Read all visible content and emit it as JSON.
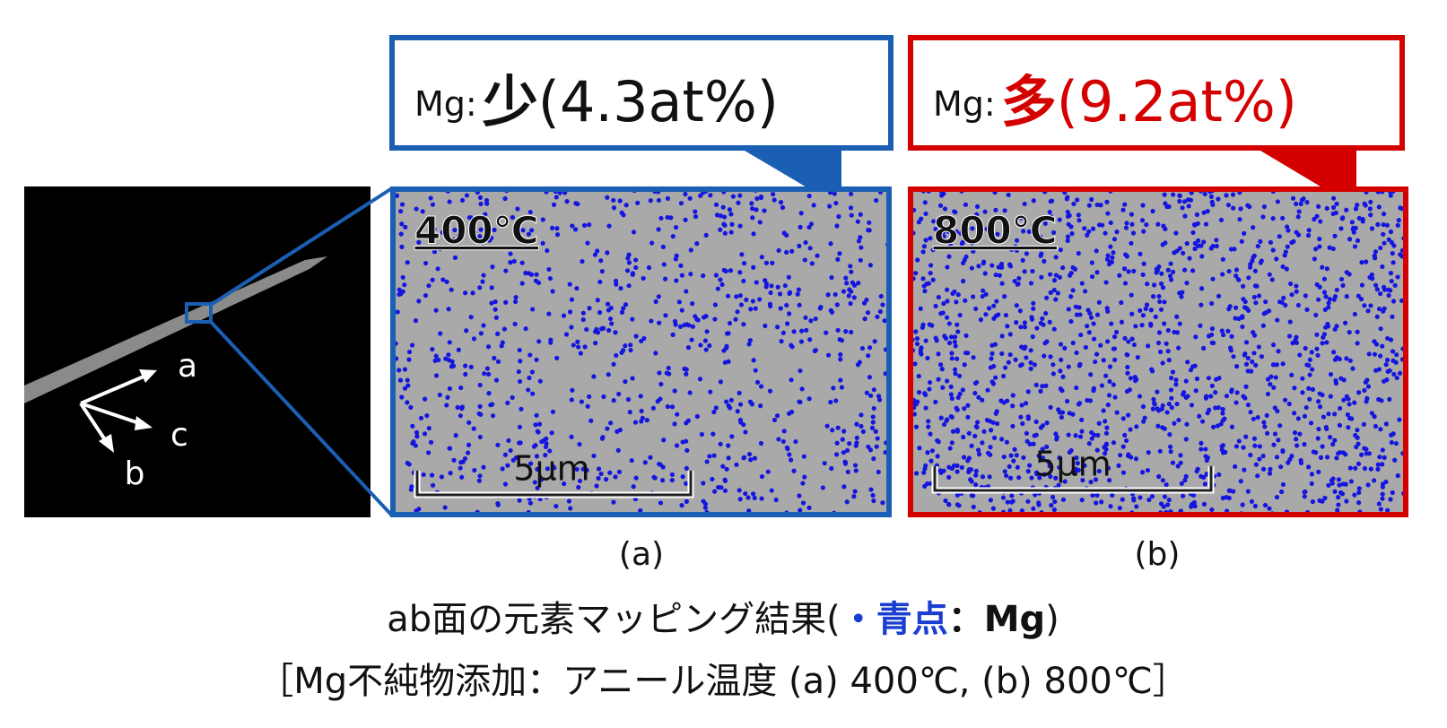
{
  "inset": {
    "axis_a": "a",
    "axis_b": "b",
    "axis_c": "c"
  },
  "panels": [
    {
      "element": "Mg",
      "separator": ":",
      "amount": "少",
      "percent": "(4.3at%)",
      "temperature": "400℃",
      "scale": "5μm",
      "caption": "(a)"
    },
    {
      "element": "Mg",
      "separator": ":",
      "amount": "多",
      "percent": "(9.2at%)",
      "temperature": "800℃",
      "scale": "5μm",
      "caption": "(b)"
    }
  ],
  "caption": {
    "line1_start": "ab面の元素マッピング結果(",
    "line1_marker": "・青点",
    "line1_element": "：Mg",
    "line1_end": ")",
    "line2": "［Mg不純物添加：アニール温度 (a) 400℃, (b) 800℃］"
  }
}
